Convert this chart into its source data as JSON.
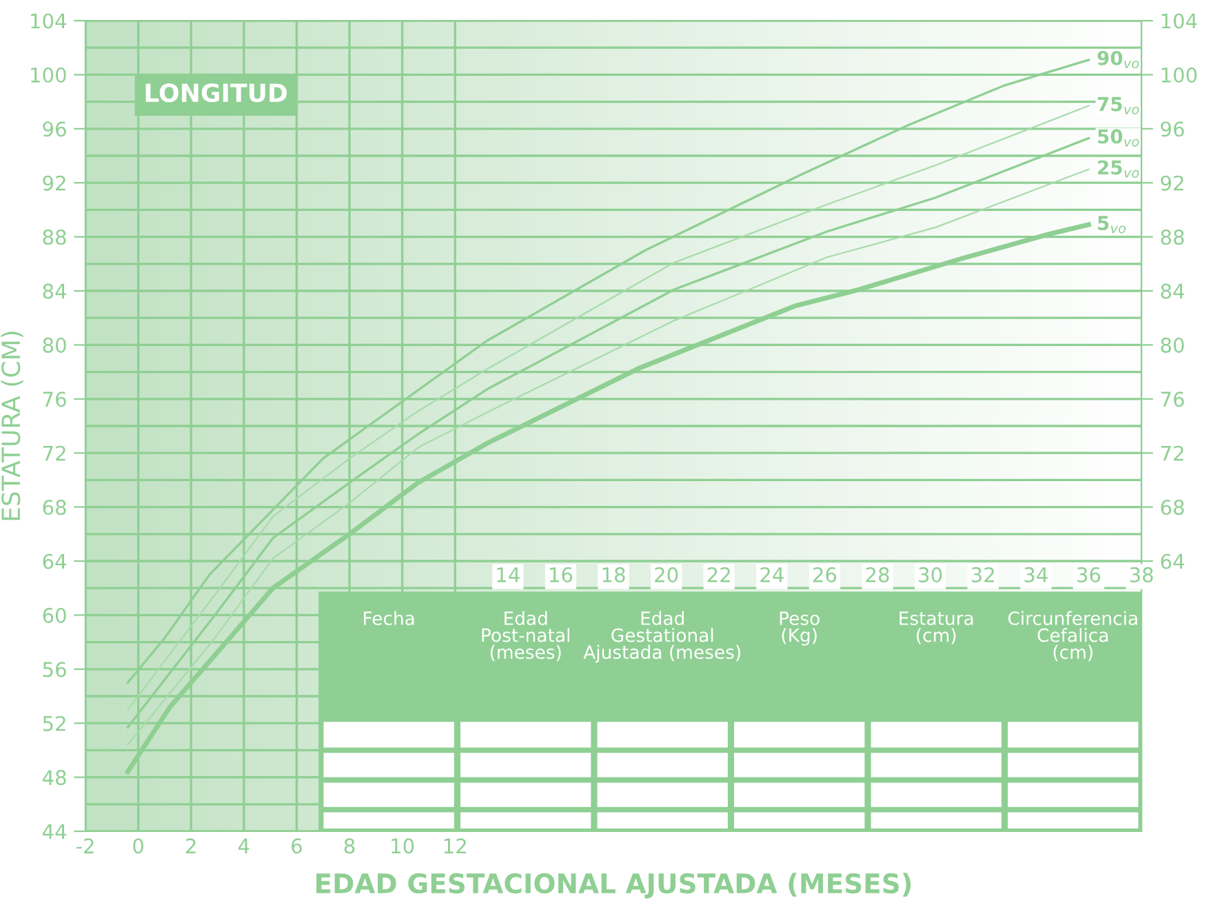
{
  "chart_data": {
    "type": "line",
    "title": "LONGITUD",
    "xlabel": "EDAD GESTACIONAL AJUSTADA (MESES)",
    "ylabel": "ESTATURA (CM)",
    "series": [
      {
        "name": "90$_{vo}$",
        "color": "#8fcf93",
        "x": [
          -0.4,
          1.0,
          2.7,
          7.0,
          13.2,
          19.2,
          25.1,
          29.2,
          32.8,
          36
        ],
        "values": [
          55.0,
          58.3,
          63.0,
          71.6,
          80.3,
          87.0,
          92.6,
          96.3,
          99.2,
          101.1
        ]
      },
      {
        "name": "75$_{vo}$",
        "color": "#a8dbab",
        "x": [
          -0.4,
          2.9,
          5.1,
          8.0,
          10.6,
          13.2,
          20.3,
          26.1,
          30.2,
          36
        ],
        "values": [
          53.0,
          61.5,
          67.3,
          71.6,
          75.1,
          78.2,
          86.1,
          90.4,
          93.3,
          97.7
        ]
      },
      {
        "name": "50$_{vo}$",
        "color": "#8fcf93",
        "x": [
          -0.4,
          2.9,
          5.1,
          8.0,
          10.6,
          13.2,
          20.3,
          26.1,
          30.2,
          36
        ],
        "values": [
          51.7,
          60.0,
          65.7,
          69.8,
          73.4,
          76.7,
          84.1,
          88.4,
          90.9,
          95.3
        ]
      },
      {
        "name": "25$_{vo}$",
        "color": "#a8dbab",
        "x": [
          -0.4,
          2.9,
          5.1,
          8.0,
          10.6,
          13.2,
          20.3,
          26.1,
          30.2,
          36
        ],
        "values": [
          50.4,
          58.3,
          64.2,
          68.3,
          72.4,
          75.0,
          81.8,
          86.5,
          88.7,
          93.0
        ]
      },
      {
        "name": "5$_{vo}$",
        "color": "#8fcf93",
        "x": [
          -0.4,
          1.2,
          5.1,
          8.0,
          10.6,
          13.2,
          19.0,
          24.9,
          27.3,
          31.2,
          34.5,
          36
        ],
        "values": [
          48.4,
          53.2,
          62.0,
          66.0,
          69.8,
          72.7,
          78.3,
          82.9,
          84.1,
          86.4,
          88.2,
          88.9
        ]
      }
    ],
    "xlim": [
      -2,
      38
    ],
    "xticks": [
      -2,
      0,
      2,
      4,
      6,
      8,
      10,
      12
    ],
    "x2lim": [
      -2,
      38
    ],
    "x2ticks": [
      14,
      16,
      18,
      20,
      22,
      24,
      26,
      28,
      30,
      32,
      34,
      36,
      38
    ],
    "ylim": [
      44,
      104
    ],
    "yticks": [
      44,
      48,
      52,
      56,
      60,
      64,
      68,
      72,
      76,
      80,
      84,
      88,
      92,
      96,
      100,
      104
    ],
    "y2lim": [
      44,
      104
    ],
    "y2ticks": [
      64,
      68,
      72,
      76,
      80,
      84,
      88,
      92,
      96,
      100,
      104
    ],
    "grid": true,
    "legend": false,
    "marker": "none",
    "line_style": "solid",
    "annotations": [
      "Fecha",
      "Edad\nPost-natal\n(meses)",
      "Edad\nGestational\nAjustada (meses)",
      "Peso\n(Kg)",
      "Estatura\n(cm)",
      "Circunferencia\nCefalica\n(cm)"
    ]
  }
}
